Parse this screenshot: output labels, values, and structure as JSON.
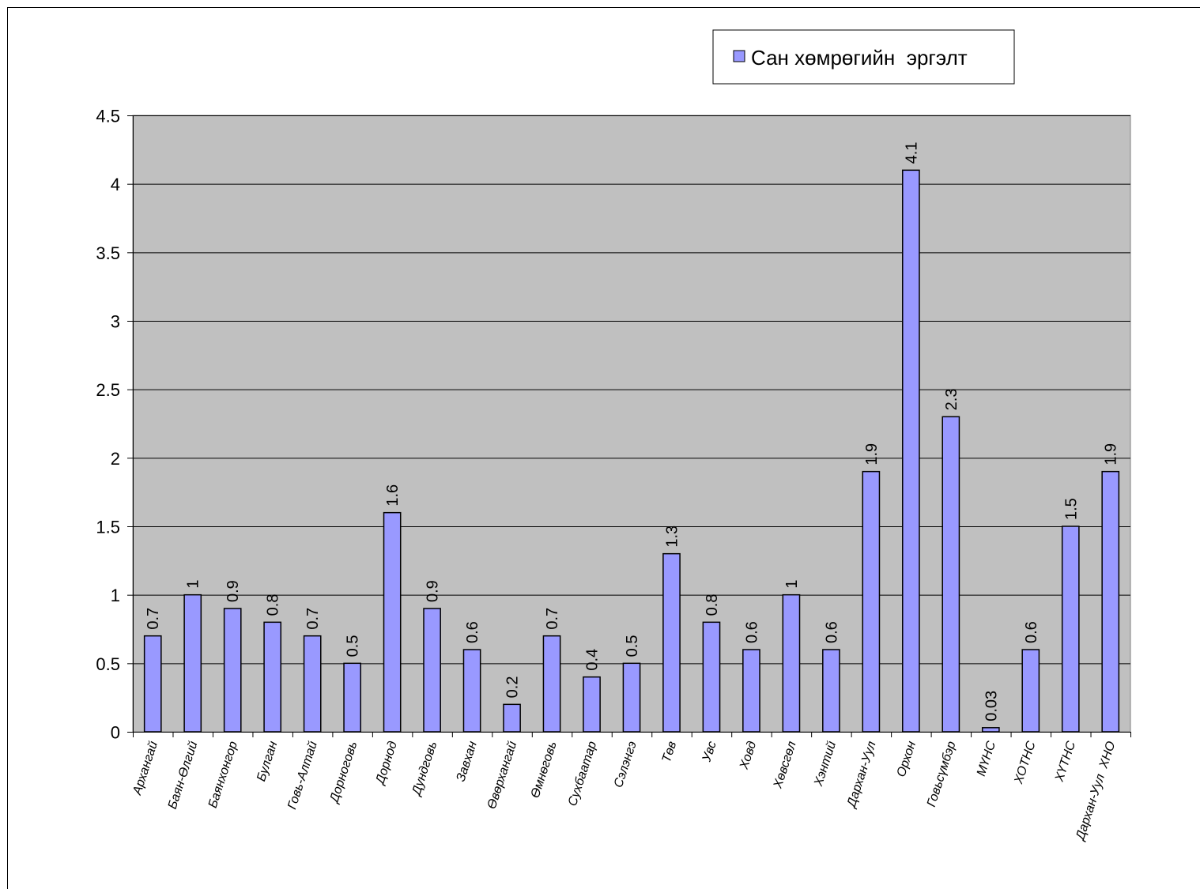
{
  "chart_data": {
    "type": "bar",
    "title": "",
    "xlabel": "",
    "ylabel": "",
    "ylim": [
      0,
      4.5
    ],
    "yticks": [
      "0",
      "0.5",
      "1",
      "1.5",
      "2",
      "2.5",
      "3",
      "3.5",
      "4",
      "4.5"
    ],
    "grid": true,
    "legend_position": "top-right",
    "categories": [
      "Архангай",
      "Баян-Өлгий",
      "Баянхонгор",
      "Булган",
      "Говь-Алтай",
      "Дорноговь",
      "Дорнод",
      "Дундговь",
      "Завхан",
      "Өвөрхангай",
      "Өмнөговь",
      "Сухбаатар",
      "Сэлэнгэ",
      "Төв",
      "Увс",
      "Ховд",
      "Хөвсгөл",
      "Хэнтий",
      "Дархан-Уул",
      "Орхон",
      "Говьсүмбэр",
      "МҮНС",
      "ХОТНС",
      "ХҮТНС",
      "Дархан-Уул  ХНО"
    ],
    "series": [
      {
        "name": "Сан хөмрөгийн  эргэлт",
        "values": [
          0.7,
          1,
          0.9,
          0.8,
          0.7,
          0.5,
          1.6,
          0.9,
          0.6,
          0.2,
          0.7,
          0.4,
          0.5,
          1.3,
          0.8,
          0.6,
          1,
          0.6,
          1.9,
          4.1,
          2.3,
          0.03,
          0.6,
          1.5,
          1.9
        ],
        "labels": [
          "0.7",
          "1",
          "0.9",
          "0.8",
          "0.7",
          "0.5",
          "1.6",
          "0.9",
          "0.6",
          "0.2",
          "0.7",
          "0.4",
          "0.5",
          "1.3",
          "0.8",
          "0.6",
          "1",
          "0.6",
          "1.9",
          "4.1",
          "2.3",
          "0.03",
          "0.6",
          "1.5",
          "1.9"
        ]
      }
    ],
    "colors": {
      "bar_fill": "#9999ff",
      "bar_stroke": "#000000",
      "plot_background": "#c0c0c0",
      "gridline": "#000000"
    }
  }
}
